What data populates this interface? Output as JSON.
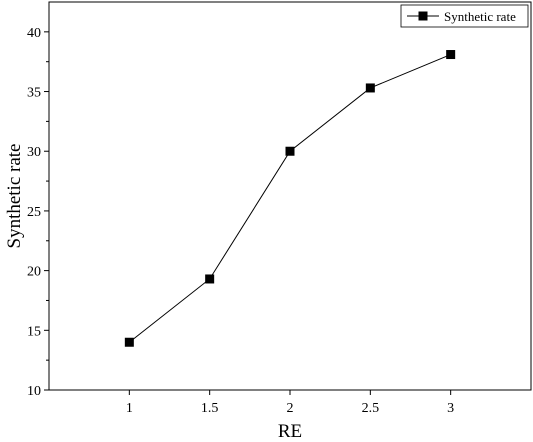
{
  "chart_data": {
    "type": "line",
    "title": "",
    "xlabel": "RE",
    "ylabel": "Synthetic rate",
    "x": [
      1,
      1.5,
      2,
      2.5,
      3
    ],
    "x_tick_labels": [
      "1",
      "1.5",
      "2",
      "2.5",
      "3"
    ],
    "series": [
      {
        "name": "Synthetic rate",
        "values": [
          14.0,
          19.3,
          30.0,
          35.3,
          38.1
        ]
      }
    ],
    "xlim": [
      0.5,
      3.5
    ],
    "ylim": [
      10,
      42.5
    ],
    "y_ticks": [
      10,
      15,
      20,
      25,
      30,
      35,
      40
    ],
    "y_tick_labels": [
      "10",
      "15",
      "20",
      "25",
      "30",
      "35",
      "40"
    ],
    "grid": false,
    "legend_position": "top-right",
    "marker": "square",
    "line_color": "#000000",
    "marker_color": "#000000"
  }
}
